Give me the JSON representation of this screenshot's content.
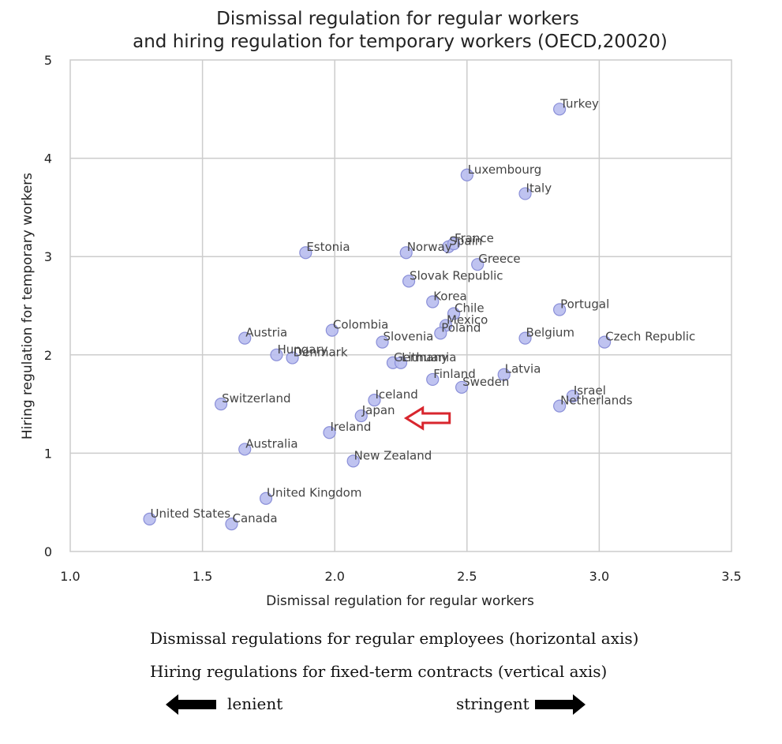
{
  "chart_data": {
    "type": "scatter",
    "title": [
      "Dismissal regulation for regular workers",
      "and hiring regulation for temporary workers (OECD,20020)"
    ],
    "xlabel": "Dismissal regulation for regular workers",
    "ylabel": "Hiring regulation for temporary workers",
    "xlim": [
      1.0,
      3.5
    ],
    "ylim": [
      0,
      5
    ],
    "xticks": [
      "1.0",
      "1.5",
      "2.0",
      "2.5",
      "3.0",
      "3.5"
    ],
    "yticks": [
      "0",
      "1",
      "2",
      "3",
      "4",
      "5"
    ],
    "grid": true,
    "marker_color": "#b8bcee",
    "marker_edge": "#8a8fd8",
    "highlight_arrow_color": "#d8262e",
    "highlight": "Japan",
    "points": [
      {
        "label": "Turkey",
        "x": 2.85,
        "y": 4.5
      },
      {
        "label": "Luxembourg",
        "x": 2.5,
        "y": 3.83
      },
      {
        "label": "Italy",
        "x": 2.72,
        "y": 3.64
      },
      {
        "label": "Estonia",
        "x": 1.89,
        "y": 3.04
      },
      {
        "label": "Norway",
        "x": 2.27,
        "y": 3.04
      },
      {
        "label": "Spain",
        "x": 2.43,
        "y": 3.1
      },
      {
        "label": "France",
        "x": 2.45,
        "y": 3.13
      },
      {
        "label": "Greece",
        "x": 2.54,
        "y": 2.92
      },
      {
        "label": "Slovak Republic",
        "x": 2.28,
        "y": 2.75
      },
      {
        "label": "Korea",
        "x": 2.37,
        "y": 2.54
      },
      {
        "label": "Chile",
        "x": 2.45,
        "y": 2.42
      },
      {
        "label": "Portugal",
        "x": 2.85,
        "y": 2.46
      },
      {
        "label": "Mexico",
        "x": 2.42,
        "y": 2.3
      },
      {
        "label": "Poland",
        "x": 2.4,
        "y": 2.22
      },
      {
        "label": "Colombia",
        "x": 1.99,
        "y": 2.25
      },
      {
        "label": "Austria",
        "x": 1.66,
        "y": 2.17
      },
      {
        "label": "Slovenia",
        "x": 2.18,
        "y": 2.13
      },
      {
        "label": "Belgium",
        "x": 2.72,
        "y": 2.17
      },
      {
        "label": "Czech Republic",
        "x": 3.02,
        "y": 2.13
      },
      {
        "label": "Hungary",
        "x": 1.78,
        "y": 2.0
      },
      {
        "label": "Denmark",
        "x": 1.84,
        "y": 1.97
      },
      {
        "label": "Germany",
        "x": 2.22,
        "y": 1.92
      },
      {
        "label": "Lithuania",
        "x": 2.25,
        "y": 1.92
      },
      {
        "label": "Latvia",
        "x": 2.64,
        "y": 1.8
      },
      {
        "label": "Finland",
        "x": 2.37,
        "y": 1.75
      },
      {
        "label": "Sweden",
        "x": 2.48,
        "y": 1.67
      },
      {
        "label": "Switzerland",
        "x": 1.57,
        "y": 1.5
      },
      {
        "label": "Iceland",
        "x": 2.15,
        "y": 1.54
      },
      {
        "label": "Israel",
        "x": 2.9,
        "y": 1.58
      },
      {
        "label": "Netherlands",
        "x": 2.85,
        "y": 1.48
      },
      {
        "label": "Japan",
        "x": 2.1,
        "y": 1.38
      },
      {
        "label": "Ireland",
        "x": 1.98,
        "y": 1.21
      },
      {
        "label": "Australia",
        "x": 1.66,
        "y": 1.04
      },
      {
        "label": "New Zealand",
        "x": 2.07,
        "y": 0.92
      },
      {
        "label": "United Kingdom",
        "x": 1.74,
        "y": 0.54
      },
      {
        "label": "United States",
        "x": 1.3,
        "y": 0.33
      },
      {
        "label": "Canada",
        "x": 1.61,
        "y": 0.28
      }
    ]
  },
  "captions": {
    "line1": "Dismissal regulations for regular employees (horizontal axis)",
    "line2": "Hiring regulations for fixed-term contracts (vertical axis)"
  },
  "legend": {
    "lenient": "lenient",
    "stringent": "stringent"
  }
}
